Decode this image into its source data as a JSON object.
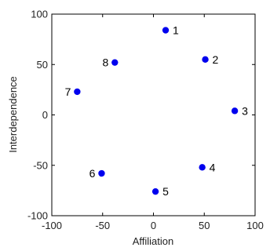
{
  "chart_data": {
    "type": "scatter",
    "title": "",
    "xlabel": "Affiliation",
    "ylabel": "Interdependence",
    "xlim": [
      -100,
      100
    ],
    "ylim": [
      -100,
      100
    ],
    "xticks": [
      -100,
      -50,
      0,
      50,
      100
    ],
    "yticks": [
      -100,
      -50,
      0,
      50,
      100
    ],
    "grid": false,
    "marker_color": "#0000ee",
    "points": [
      {
        "label": "1",
        "x": 12,
        "y": 84,
        "label_side": "right"
      },
      {
        "label": "2",
        "x": 51,
        "y": 55,
        "label_side": "right"
      },
      {
        "label": "3",
        "x": 80,
        "y": 4,
        "label_side": "right"
      },
      {
        "label": "4",
        "x": 48,
        "y": -52,
        "label_side": "right"
      },
      {
        "label": "5",
        "x": 2,
        "y": -76,
        "label_side": "right"
      },
      {
        "label": "6",
        "x": -51,
        "y": -58,
        "label_side": "left"
      },
      {
        "label": "7",
        "x": -75,
        "y": 23,
        "label_side": "left"
      },
      {
        "label": "8",
        "x": -38,
        "y": 52,
        "label_side": "left"
      }
    ]
  }
}
